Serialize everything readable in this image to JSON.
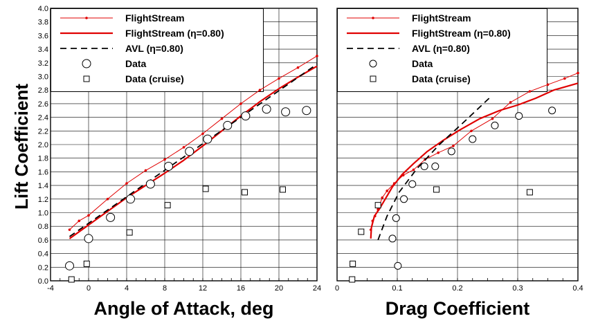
{
  "figure": {
    "ylabel": "Lift Coefficient",
    "colors": {
      "flightstream": "#e00000",
      "avl": "#000000",
      "grid": "#000000"
    }
  },
  "chart_data": [
    {
      "type": "line",
      "xlabel": "Angle of Attack, deg",
      "ylabel": "Lift Coefficient",
      "xlim": [
        -4,
        24
      ],
      "ylim": [
        0,
        4.0
      ],
      "grid": true,
      "legend_position": "top-right",
      "x_ticks": [
        "-4",
        "0",
        "4",
        "8",
        "12",
        "16",
        "20",
        "24"
      ],
      "y_ticks": [
        "0.0",
        "0.2",
        "0.4",
        "0.6",
        "0.8",
        "1.0",
        "1.2",
        "1.4",
        "1.6",
        "1.8",
        "2.0",
        "2.2",
        "2.4",
        "2.6",
        "2.8",
        "3.0",
        "3.2",
        "3.4",
        "3.6",
        "3.8",
        "4.0"
      ],
      "series": [
        {
          "name": "FlightStream",
          "style": "thin-red-line-dots",
          "x": [
            -2,
            -1,
            0,
            2,
            4,
            6,
            8,
            10,
            12,
            14,
            16,
            18,
            20,
            22,
            24
          ],
          "y": [
            0.75,
            0.88,
            0.96,
            1.2,
            1.43,
            1.62,
            1.78,
            1.96,
            2.16,
            2.38,
            2.6,
            2.8,
            2.97,
            3.13,
            3.3
          ]
        },
        {
          "name": "FlightStream (η=0.80)",
          "style": "thick-red-line",
          "x": [
            -2,
            0,
            2,
            4,
            6,
            8,
            10,
            12,
            14,
            16,
            18,
            20,
            22,
            24
          ],
          "y": [
            0.62,
            0.82,
            1.02,
            1.22,
            1.4,
            1.58,
            1.77,
            1.98,
            2.2,
            2.42,
            2.63,
            2.82,
            2.99,
            3.15
          ]
        },
        {
          "name": "AVL (η=0.80)",
          "style": "black-dashed",
          "x": [
            -2,
            24
          ],
          "y": [
            0.65,
            3.18
          ]
        },
        {
          "name": "Data",
          "style": "open-circles",
          "x": [
            -2,
            0,
            2.3,
            4.4,
            6.5,
            8.4,
            10.6,
            12.5,
            14.6,
            16.5,
            18.7,
            20.7,
            22.9
          ],
          "y": [
            0.22,
            0.62,
            0.93,
            1.2,
            1.42,
            1.68,
            1.9,
            2.08,
            2.28,
            2.42,
            2.52,
            2.48,
            2.5
          ]
        },
        {
          "name": "Data (cruise)",
          "style": "open-squares",
          "x": [
            -1.8,
            -0.2,
            4.3,
            8.3,
            12.3,
            16.4,
            20.4
          ],
          "y": [
            0.02,
            0.25,
            0.71,
            1.11,
            1.35,
            1.3,
            1.34
          ]
        }
      ]
    },
    {
      "type": "line",
      "xlabel": "Drag Coefficient",
      "ylabel": "Lift Coefficient",
      "xlim": [
        0,
        0.4
      ],
      "ylim": [
        0,
        4.0
      ],
      "grid": true,
      "legend_position": "top-right",
      "x_ticks": [
        "0",
        "0.1",
        "0.2",
        "0.3",
        "0.4"
      ],
      "y_ticks": [],
      "series": [
        {
          "name": "FlightStream",
          "style": "thin-red-line-dots",
          "x": [
            0.056,
            0.059,
            0.063,
            0.068,
            0.075,
            0.083,
            0.095,
            0.11,
            0.127,
            0.146,
            0.168,
            0.193,
            0.223,
            0.258,
            0.288,
            0.32,
            0.35,
            0.378,
            0.4
          ],
          "y": [
            0.75,
            0.88,
            0.95,
            1.05,
            1.22,
            1.32,
            1.43,
            1.55,
            1.63,
            1.78,
            1.88,
            1.98,
            2.2,
            2.38,
            2.62,
            2.78,
            2.88,
            2.97,
            3.05
          ]
        },
        {
          "name": "FlightStream (η=0.80)",
          "style": "thick-red-line",
          "x": [
            0.056,
            0.057,
            0.062,
            0.07,
            0.08,
            0.092,
            0.108,
            0.127,
            0.15,
            0.176,
            0.205,
            0.237,
            0.27,
            0.3,
            0.33,
            0.36,
            0.4
          ],
          "y": [
            0.62,
            0.78,
            0.95,
            1.05,
            1.2,
            1.38,
            1.56,
            1.72,
            1.9,
            2.06,
            2.22,
            2.38,
            2.5,
            2.58,
            2.68,
            2.8,
            2.9
          ]
        },
        {
          "name": "AVL (η=0.80)",
          "style": "black-dashed",
          "x": [
            0.068,
            0.083,
            0.103,
            0.133,
            0.17,
            0.213,
            0.255
          ],
          "y": [
            0.6,
            0.95,
            1.3,
            1.65,
            2.0,
            2.35,
            2.7
          ]
        },
        {
          "name": "Data",
          "style": "open-circles",
          "x": [
            0.092,
            0.098,
            0.101,
            0.111,
            0.125,
            0.145,
            0.163,
            0.19,
            0.225,
            0.262,
            0.302,
            0.357
          ],
          "y": [
            0.62,
            0.92,
            0.22,
            1.2,
            1.42,
            1.68,
            1.68,
            1.9,
            2.08,
            2.28,
            2.42,
            2.5
          ]
        },
        {
          "name": "Data (cruise)",
          "style": "open-squares",
          "x": [
            0.025,
            0.026,
            0.04,
            0.068,
            0.165,
            0.32
          ],
          "y": [
            0.02,
            0.25,
            0.72,
            1.11,
            1.34,
            1.3
          ]
        }
      ]
    }
  ]
}
